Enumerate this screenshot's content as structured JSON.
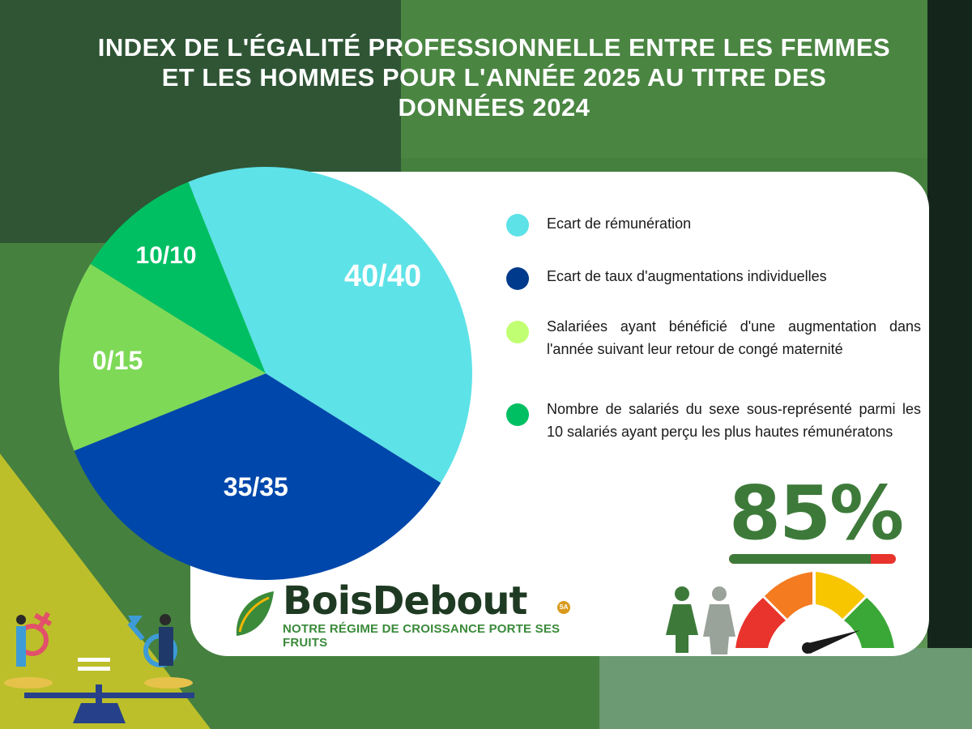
{
  "title": "INDEX DE L'ÉGALITÉ PROFESSIONNELLE ENTRE LES FEMMES ET LES HOMMES POUR L'ANNÉE 2025 AU TITRE DES DONNÉES 2024",
  "chart_data": {
    "type": "pie",
    "title": "INDEX DE L'ÉGALITÉ PROFESSIONNELLE ENTRE LES FEMMES ET LES HOMMES POUR L'ANNÉE 2025 AU TITRE DES DONNÉES 2024",
    "slices": [
      {
        "key": "remuneration",
        "label": "40/40",
        "value": 40,
        "color": "#5de2e7",
        "legend": "Ecart de rémunération"
      },
      {
        "key": "augmentations",
        "label": "35/35",
        "value": 35,
        "color": "#0047ab",
        "legend": "Ecart de taux d'augmentations individuelles"
      },
      {
        "key": "conge",
        "label": "0/15",
        "value": 15,
        "color": "#7ed957",
        "legend": "Salariées ayant bénéficié d'une augmentation dans l'année suivant leur retour de congé maternité"
      },
      {
        "key": "hautes",
        "label": "10/10",
        "value": 10,
        "color": "#00bf63",
        "legend": "Nombre de salariés du sexe sous-représenté parmi les 10 salariés ayant perçu les plus hautes rémunératons"
      }
    ],
    "legend_position": "right"
  },
  "legend_items": [
    {
      "text": "Ecart de rémunération",
      "color": "#5de2e7"
    },
    {
      "text": "Ecart de taux d'augmentations individuelles",
      "color": "#003a8c"
    },
    {
      "text": "Salariées ayant bénéficié d'une augmentation dans l'année suivant leur retour de congé maternité",
      "color": "#c1ff72"
    },
    {
      "text": "Nombre de salariés du sexe sous-représenté parmi les 10 salariés ayant perçu les plus hautes rémunératons",
      "color": "#00bf63"
    }
  ],
  "score": {
    "text": "85%",
    "value": 0.85,
    "bar_color": "#3d7a3a",
    "track_color": "#e8342c"
  },
  "logo": {
    "name": "BoisDebout",
    "badge": "SA",
    "tagline": "NOTRE RÉGIME DE CROISSANCE PORTE SES FRUITS"
  },
  "scale_sign": "="
}
